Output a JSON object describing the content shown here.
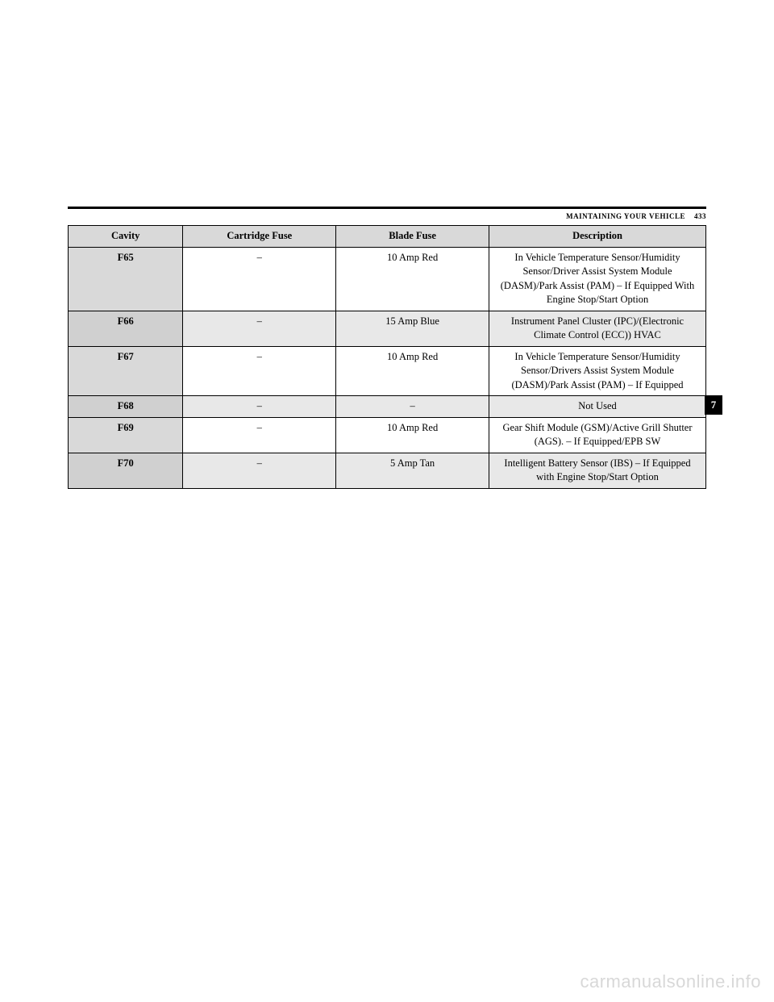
{
  "header": {
    "section_label": "MAINTAINING YOUR VEHICLE",
    "page_number": "433"
  },
  "sidetab": "7",
  "watermark": "carmanualsonline.info",
  "table": {
    "columns": [
      "Cavity",
      "Cartridge Fuse",
      "Blade Fuse",
      "Description"
    ],
    "col_widths": [
      "18%",
      "24%",
      "24%",
      "34%"
    ],
    "header_bg": "#d9d9d9",
    "row_shade_bg": "#e8e8e8",
    "border_color": "#000000",
    "font_size_pt": 9,
    "rows": [
      {
        "shaded": false,
        "cavity": "F65",
        "cartridge": "–",
        "blade": "10 Amp Red",
        "desc": "In Vehicle Temperature Sensor/Humidity Sensor/Driver Assist System Module (DASM)/Park Assist (PAM) – If Equipped With Engine Stop/Start Option"
      },
      {
        "shaded": true,
        "cavity": "F66",
        "cartridge": "–",
        "blade": "15 Amp Blue",
        "desc": "Instrument Panel Cluster (IPC)/(Electronic Climate Control (ECC)) HVAC"
      },
      {
        "shaded": false,
        "cavity": "F67",
        "cartridge": "–",
        "blade": "10 Amp Red",
        "desc": "In Vehicle Temperature Sensor/Humidity Sensor/Drivers Assist System Module (DASM)/Park Assist (PAM) – If Equipped"
      },
      {
        "shaded": true,
        "cavity": "F68",
        "cartridge": "–",
        "blade": "–",
        "desc": "Not Used"
      },
      {
        "shaded": false,
        "cavity": "F69",
        "cartridge": "–",
        "blade": "10 Amp Red",
        "desc": "Gear Shift Module (GSM)/Active Grill Shutter (AGS). – If Equipped/EPB SW"
      },
      {
        "shaded": true,
        "cavity": "F70",
        "cartridge": "–",
        "blade": "5 Amp Tan",
        "desc": "Intelligent Battery Sensor (IBS) – If Equipped with Engine Stop/Start Option"
      }
    ]
  }
}
